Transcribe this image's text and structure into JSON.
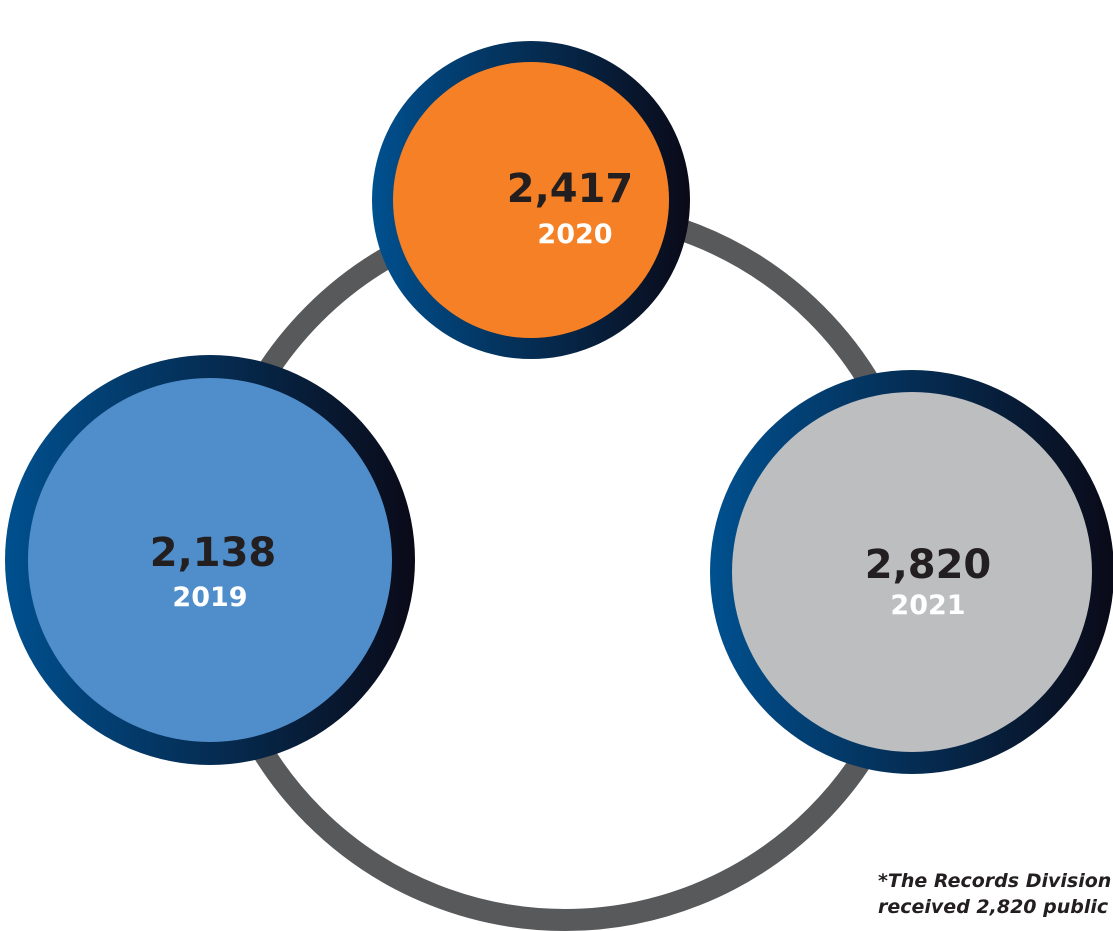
{
  "nodes": [
    {
      "value": "2,417",
      "year": "2020"
    },
    {
      "value": "2,138",
      "year": "2019"
    },
    {
      "value": "2,820",
      "year": "2021"
    }
  ],
  "footnote": [
    "*The Records Division",
    "received 2,820 public"
  ]
}
